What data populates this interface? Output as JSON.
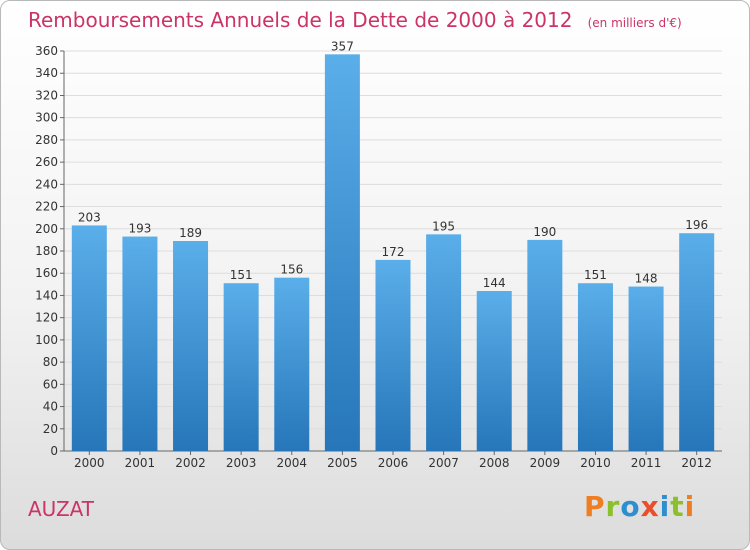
{
  "header": {
    "title": "Remboursements Annuels de la Dette de 2000 à 2012",
    "unit": "(en milliers d'€)"
  },
  "footer": {
    "commune": "AUZAT",
    "brand": "Proxiti"
  },
  "colors": {
    "title": "#cc3366",
    "bar_top": "#5aaee9",
    "bar_bottom": "#2676b9",
    "logo_letters": [
      "#ef7d21",
      "#8bbf2b",
      "#2e8fd0",
      "#e84f2a",
      "#2e8fd0",
      "#8bbf2b",
      "#ef7d21"
    ]
  },
  "chart_data": {
    "type": "bar",
    "categories": [
      "2000",
      "2001",
      "2002",
      "2003",
      "2004",
      "2005",
      "2006",
      "2007",
      "2008",
      "2009",
      "2010",
      "2011",
      "2012"
    ],
    "values": [
      203,
      193,
      189,
      151,
      156,
      357,
      172,
      195,
      144,
      190,
      151,
      148,
      196
    ],
    "ylim": [
      0,
      360
    ],
    "yticks": [
      0,
      20,
      40,
      60,
      80,
      100,
      120,
      140,
      160,
      180,
      200,
      220,
      240,
      260,
      280,
      300,
      320,
      340,
      360
    ],
    "grid": true,
    "data_labels": true,
    "title": "Remboursements Annuels de la Dette de 2000 à 2012",
    "xlabel": "",
    "ylabel": ""
  }
}
